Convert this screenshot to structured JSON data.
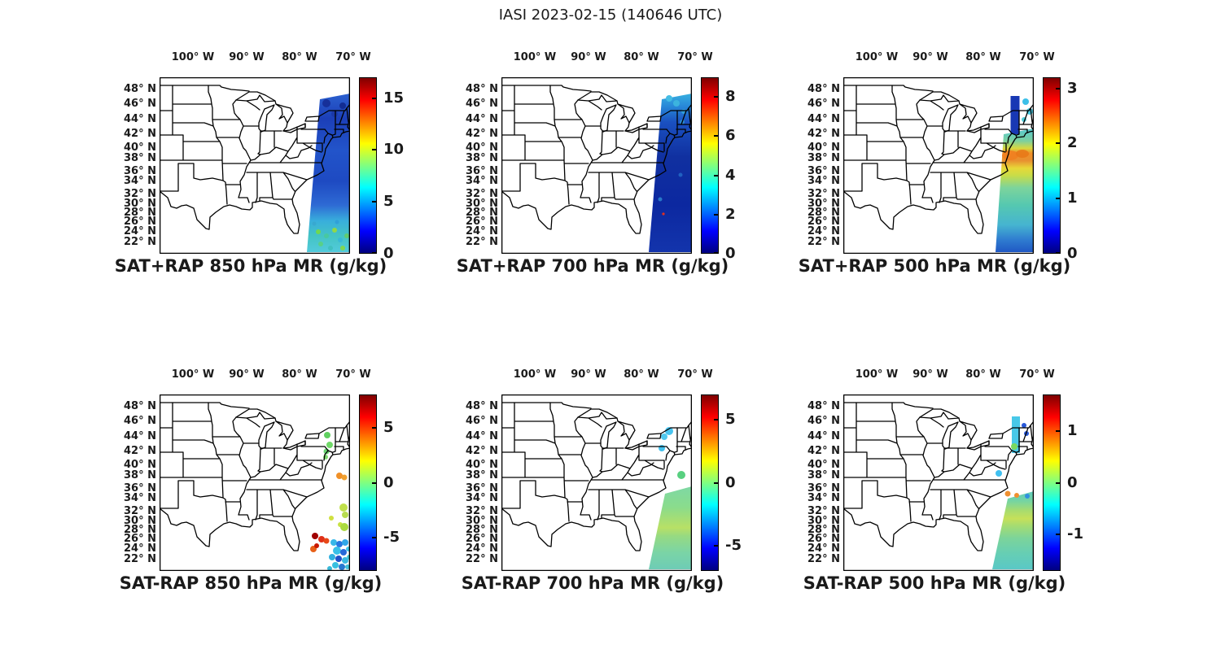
{
  "figure_title": "IASI 2023-02-15 (140646 UTC)",
  "axes": {
    "lon_labels": [
      "100° W",
      "90° W",
      "80° W",
      "70° W"
    ],
    "lat_labels": [
      "48° N",
      "46° N",
      "44° N",
      "42° N",
      "40° N",
      "38° N",
      "36° N",
      "34° N",
      "32° N",
      "30° N",
      "28° N",
      "26° N",
      "24° N",
      "22° N"
    ]
  },
  "chart_data": [
    {
      "type": "map",
      "position": "top-left",
      "title": "SAT+RAP 850 hPa MR (g/kg)",
      "variable": "mixing ratio",
      "pressure_level_hPa": 850,
      "units": "g/kg",
      "colorbar": {
        "colormap": "jet",
        "range": [
          0,
          17
        ],
        "ticks": [
          0,
          5,
          10,
          15
        ],
        "tick_labels": [
          "0",
          "5",
          "10",
          "15"
        ]
      },
      "swath": "Diagonal IASI swath along US east coast 47N-22N near 70-75W; mostly 1-4 g/kg (blue) with 5-8 g/kg (cyan/green) speckles south of 28N"
    },
    {
      "type": "map",
      "position": "top-middle",
      "title": "SAT+RAP 700 hPa MR (g/kg)",
      "variable": "mixing ratio",
      "pressure_level_hPa": 700,
      "units": "g/kg",
      "colorbar": {
        "colormap": "jet",
        "range": [
          0,
          9
        ],
        "ticks": [
          0,
          2,
          4,
          6,
          8
        ],
        "tick_labels": [
          "0",
          "2",
          "4",
          "6",
          "8"
        ]
      },
      "swath": "Same swath; mostly 0.5-2 g/kg (dark blue) with 3-4 g/kg (cyan) over New England and one small red speckle near 27N"
    },
    {
      "type": "map",
      "position": "top-right",
      "title": "SAT+RAP 500 hPa MR (g/kg)",
      "variable": "mixing ratio",
      "pressure_level_hPa": 500,
      "units": "g/kg",
      "colorbar": {
        "colormap": "jet",
        "range": [
          0,
          3.2
        ],
        "ticks": [
          0,
          1,
          2,
          3
        ],
        "tick_labels": [
          "0",
          "1",
          "2",
          "3"
        ]
      },
      "swath": "Dark-blue strip over VT/NH, cyan over Maine; 2-2.5 g/kg orange-yellow band 36-40N, ~1 g/kg cyan-green 24-34N, <0.5 g/kg blue at 22N"
    },
    {
      "type": "map",
      "position": "bottom-left",
      "title": "SAT-RAP 850 hPa MR (g/kg)",
      "variable": "mixing ratio difference (satellite minus RAP)",
      "pressure_level_hPa": 850,
      "units": "g/kg",
      "colorbar": {
        "colormap": "jet",
        "range": [
          -8,
          8
        ],
        "ticks": [
          -5,
          0,
          5
        ],
        "tick_labels": [
          "-5",
          "0",
          "5"
        ]
      },
      "swath": "Sparse QC'd dots: ~0 (green) near 43-45N/71W, +3 (orange) near 38N/69W, +1 (yellow-green) 30-32N, +5..+7 (red) 26-28N/74W, -2..-4 (cyan/blue) 22-26N"
    },
    {
      "type": "map",
      "position": "bottom-middle",
      "title": "SAT-RAP 700 hPa MR (g/kg)",
      "variable": "mixing ratio difference (satellite minus RAP)",
      "pressure_level_hPa": 700,
      "units": "g/kg",
      "colorbar": {
        "colormap": "jet",
        "range": [
          -7,
          7
        ],
        "ticks": [
          -5,
          0,
          5
        ],
        "tick_labels": [
          "-5",
          "0",
          "5"
        ]
      },
      "swath": "Cyan (-2) patches 42-44N over New England; dense swath 22-34N offshore near 0 to +1 g/kg (green, slight yellow streak ~28N)"
    },
    {
      "type": "map",
      "position": "bottom-right",
      "title": "SAT-RAP 500 hPa MR (g/kg)",
      "variable": "mixing ratio difference (satellite minus RAP)",
      "pressure_level_hPa": 500,
      "units": "g/kg",
      "colorbar": {
        "colormap": "jet",
        "range": [
          -1.7,
          1.7
        ],
        "ticks": [
          -1,
          0,
          1
        ],
        "tick_labels": [
          "-1",
          "0",
          "1"
        ]
      },
      "swath": "Cyan strip with blue (-1) dots 42-46N; +0.7 (orange) dots near 35N; swath 22-35N near 0 (cyan-green) with +0.5 yellow streaks 28-30N"
    }
  ]
}
